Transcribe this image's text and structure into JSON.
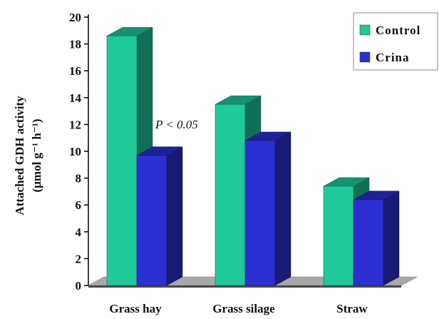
{
  "chart_data": {
    "type": "bar",
    "title": "",
    "xlabel": "",
    "ylabel_line1": "Attached GDH activity",
    "ylabel_line2": "(µmol g⁻¹ h⁻¹)",
    "categories": [
      "Grass hay",
      "Grass silage",
      "Straw"
    ],
    "series": [
      {
        "name": "Control",
        "values": [
          18.6,
          13.5,
          7.4
        ],
        "color": "#1fc99a"
      },
      {
        "name": "Crina",
        "values": [
          9.7,
          10.8,
          6.4
        ],
        "color": "#2b2fd2"
      }
    ],
    "ylim": [
      0,
      20
    ],
    "yticks": [
      "0",
      "2",
      "4",
      "6",
      "8",
      "10",
      "12",
      "14",
      "16",
      "18",
      "20"
    ],
    "legend_position": "top-right",
    "annotation": "P < 0.05",
    "grid": false
  }
}
